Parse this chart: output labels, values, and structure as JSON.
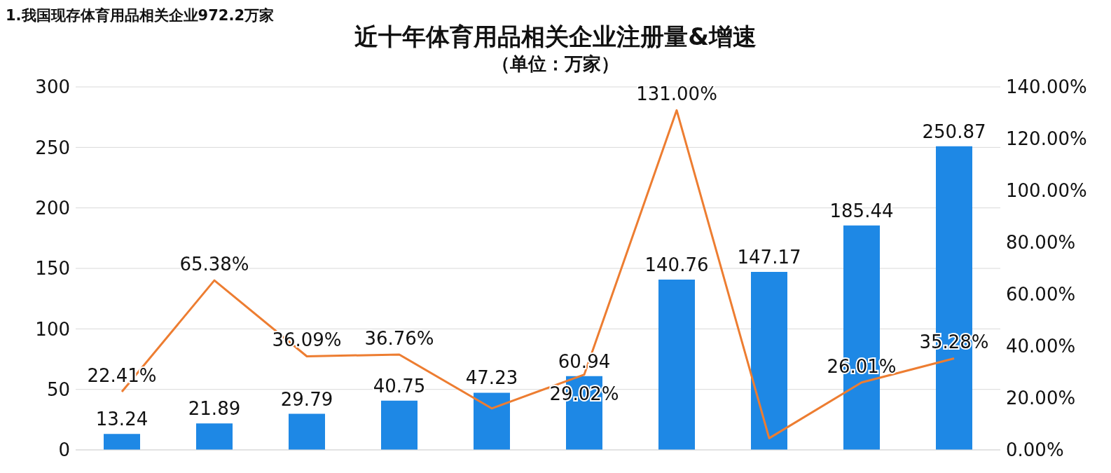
{
  "chart_data": {
    "type": "bar",
    "title": "近十年体育用品相关企业注册量&增速",
    "subtitle": "（单位：万家）",
    "annotations": [
      "1.我国现存体育用品相关企业972.2万家"
    ],
    "categories": [
      null,
      null,
      null,
      null,
      null,
      null,
      null,
      null,
      null,
      null
    ],
    "series": [
      {
        "color": "#1e88e5",
        "values": [
          13.24,
          21.89,
          29.79,
          40.75,
          47.23,
          60.94,
          140.76,
          147.17,
          185.44,
          250.87
        ],
        "value_labels": [
          "13.24",
          "21.89",
          "29.79",
          "40.75",
          "47.23",
          "60.94",
          "140.76",
          "147.17",
          "185.44",
          "250.87"
        ]
      },
      {
        "type": "line",
        "axis": "y2",
        "color": "#ed7d31",
        "marker": "none",
        "values": [
          22.41,
          65.38,
          36.09,
          36.76,
          16,
          29.02,
          131.0,
          4.5,
          26.01,
          35.28
        ],
        "value_labels": [
          "22.41%",
          "65.38%",
          "36.09%",
          "36.76%",
          null,
          "29.02%",
          "131.00%",
          null,
          "26.01%",
          "35.28%"
        ]
      }
    ],
    "ylim": [
      0,
      300
    ],
    "yticks": [
      0,
      50,
      100,
      150,
      200,
      250,
      300
    ],
    "y2lim": [
      0,
      140
    ],
    "y2ticks": [
      {
        "value": 0,
        "label": "0.00%"
      },
      {
        "value": 20,
        "label": "20.00%"
      },
      {
        "value": 40,
        "label": "40.00%"
      },
      {
        "value": 60,
        "label": "60.00%"
      },
      {
        "value": 80,
        "label": "80.00%"
      },
      {
        "value": 100,
        "label": "100.00%"
      },
      {
        "value": 120,
        "label": "120.00%"
      },
      {
        "value": 140,
        "label": "140.00%"
      }
    ],
    "grid": "y",
    "legend": false,
    "tick_labels": "y"
  }
}
